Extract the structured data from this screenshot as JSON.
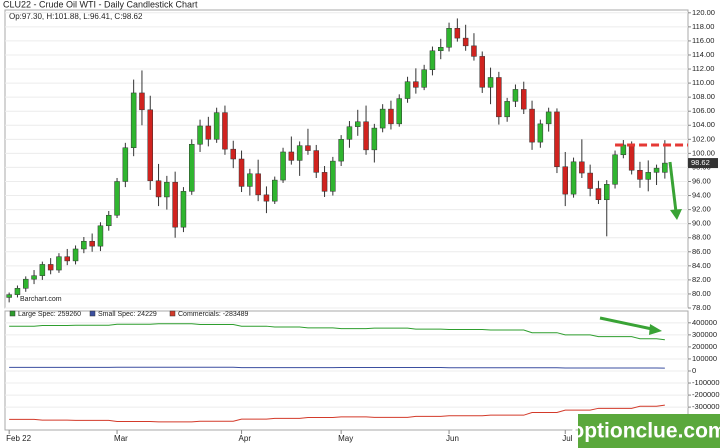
{
  "chart_data": [
    {
      "type": "candlestick",
      "title": "CLU22 - Crude Oil WTI - Daily Candlestick Chart",
      "info": "Op:97.30, H:101.88, L:96.41, C:98.62",
      "source": "Barchart.com",
      "up_color": "#2fb52f",
      "down_color": "#d0231f",
      "grid": true,
      "categories": [
        "Feb 22",
        null,
        null,
        null,
        null,
        null,
        null,
        null,
        null,
        null,
        null,
        null,
        null,
        "Mar",
        null,
        null,
        null,
        null,
        null,
        null,
        null,
        null,
        null,
        null,
        null,
        null,
        null,
        null,
        "Apr",
        null,
        null,
        null,
        null,
        null,
        null,
        null,
        null,
        null,
        null,
        null,
        "May",
        null,
        null,
        null,
        null,
        null,
        null,
        null,
        null,
        null,
        null,
        null,
        null,
        "Jun",
        null,
        null,
        null,
        null,
        null,
        null,
        null,
        null,
        null,
        null,
        null,
        null,
        null,
        "Jul",
        null,
        null,
        null,
        null,
        null,
        null,
        null,
        null,
        null,
        null,
        null,
        null
      ],
      "ohlc": [
        [
          79.5,
          80.2,
          78.8,
          79.9
        ],
        [
          79.9,
          81.2,
          79.5,
          80.8
        ],
        [
          80.8,
          82.5,
          80.3,
          82.1
        ],
        [
          82.1,
          83.4,
          81.4,
          82.6
        ],
        [
          82.6,
          84.6,
          82.0,
          84.2
        ],
        [
          84.2,
          85.1,
          82.8,
          83.4
        ],
        [
          83.4,
          85.8,
          83.0,
          85.3
        ],
        [
          85.3,
          86.4,
          84.1,
          84.7
        ],
        [
          84.7,
          86.9,
          84.2,
          86.4
        ],
        [
          86.4,
          88.1,
          85.8,
          87.5
        ],
        [
          87.5,
          88.6,
          86.0,
          86.8
        ],
        [
          86.8,
          90.2,
          86.1,
          89.7
        ],
        [
          89.7,
          91.8,
          89.0,
          91.2
        ],
        [
          91.2,
          96.5,
          90.8,
          96.0
        ],
        [
          96.0,
          101.5,
          95.2,
          100.8
        ],
        [
          100.8,
          110.5,
          99.6,
          108.6
        ],
        [
          108.6,
          111.8,
          104.0,
          106.2
        ],
        [
          106.2,
          108.2,
          94.8,
          96.1
        ],
        [
          96.1,
          98.5,
          92.5,
          93.8
        ],
        [
          93.8,
          96.8,
          92.0,
          95.9
        ],
        [
          95.9,
          97.4,
          88.0,
          89.5
        ],
        [
          89.5,
          95.2,
          88.8,
          94.6
        ],
        [
          94.6,
          102.0,
          94.1,
          101.3
        ],
        [
          101.3,
          104.8,
          100.2,
          103.9
        ],
        [
          103.9,
          105.2,
          101.0,
          102.0
        ],
        [
          102.0,
          106.5,
          101.5,
          105.8
        ],
        [
          105.8,
          106.8,
          99.8,
          100.6
        ],
        [
          100.6,
          101.8,
          97.9,
          99.2
        ],
        [
          99.2,
          100.4,
          94.5,
          95.3
        ],
        [
          95.3,
          97.8,
          94.0,
          97.1
        ],
        [
          97.1,
          99.1,
          93.2,
          94.1
        ],
        [
          94.1,
          95.3,
          91.5,
          93.2
        ],
        [
          93.2,
          96.7,
          92.8,
          96.2
        ],
        [
          96.2,
          100.8,
          95.8,
          100.2
        ],
        [
          100.2,
          102.4,
          98.4,
          99.0
        ],
        [
          99.0,
          101.7,
          96.8,
          101.1
        ],
        [
          101.1,
          103.5,
          99.8,
          100.4
        ],
        [
          100.4,
          101.2,
          96.5,
          97.3
        ],
        [
          97.3,
          98.2,
          93.8,
          94.6
        ],
        [
          94.6,
          99.5,
          94.0,
          98.9
        ],
        [
          98.9,
          102.6,
          98.2,
          102.0
        ],
        [
          102.0,
          104.6,
          100.8,
          103.8
        ],
        [
          103.8,
          106.2,
          102.5,
          104.5
        ],
        [
          104.5,
          106.8,
          99.8,
          100.5
        ],
        [
          100.5,
          104.2,
          98.7,
          103.6
        ],
        [
          103.6,
          107.0,
          103.0,
          106.3
        ],
        [
          106.3,
          107.5,
          103.4,
          104.2
        ],
        [
          104.2,
          108.4,
          103.8,
          107.8
        ],
        [
          107.8,
          110.9,
          107.2,
          110.2
        ],
        [
          110.2,
          112.1,
          108.5,
          109.4
        ],
        [
          109.4,
          112.6,
          109.0,
          111.9
        ],
        [
          111.9,
          115.2,
          111.1,
          114.6
        ],
        [
          114.6,
          116.3,
          113.4,
          115.1
        ],
        [
          115.1,
          118.6,
          114.5,
          117.8
        ],
        [
          117.8,
          119.2,
          115.9,
          116.4
        ],
        [
          116.4,
          118.3,
          114.6,
          115.3
        ],
        [
          115.3,
          117.1,
          113.2,
          113.8
        ],
        [
          113.8,
          114.5,
          108.6,
          109.4
        ],
        [
          109.4,
          112.2,
          107.0,
          110.8
        ],
        [
          110.8,
          111.6,
          104.1,
          105.2
        ],
        [
          105.2,
          107.9,
          104.5,
          107.4
        ],
        [
          107.4,
          109.8,
          106.6,
          109.1
        ],
        [
          109.1,
          110.2,
          105.6,
          106.3
        ],
        [
          106.3,
          107.5,
          100.5,
          101.6
        ],
        [
          101.6,
          104.8,
          100.8,
          104.2
        ],
        [
          104.2,
          106.5,
          103.1,
          105.9
        ],
        [
          105.9,
          106.4,
          97.2,
          98.1
        ],
        [
          98.1,
          100.2,
          92.5,
          94.2
        ],
        [
          94.2,
          99.4,
          93.7,
          98.8
        ],
        [
          98.8,
          102.0,
          96.5,
          97.2
        ],
        [
          97.2,
          98.4,
          93.9,
          95.0
        ],
        [
          95.0,
          96.1,
          92.8,
          93.4
        ],
        [
          93.4,
          96.2,
          88.2,
          95.6
        ],
        [
          95.6,
          100.4,
          95.0,
          99.8
        ],
        [
          99.8,
          101.9,
          99.3,
          101.2
        ],
        [
          101.2,
          101.7,
          97.0,
          97.6
        ],
        [
          97.6,
          98.8,
          95.1,
          96.3
        ],
        [
          96.3,
          99.0,
          94.6,
          97.3
        ],
        [
          97.3,
          98.4,
          95.5,
          97.9
        ],
        [
          97.3,
          101.88,
          96.41,
          98.62
        ]
      ],
      "hline": {
        "value": 101.2,
        "color": "#e53935"
      },
      "ylim": [
        78,
        120.4
      ],
      "yticks": [
        {
          "value": 78,
          "label": "78.00"
        },
        {
          "value": 80,
          "label": "80.00"
        },
        {
          "value": 82,
          "label": "82.00"
        },
        {
          "value": 84,
          "label": "84.00"
        },
        {
          "value": 86,
          "label": "86.00"
        },
        {
          "value": 88,
          "label": "88.00"
        },
        {
          "value": 90,
          "label": "90.00"
        },
        {
          "value": 92,
          "label": "92.00"
        },
        {
          "value": 94,
          "label": "94.00"
        },
        {
          "value": 96,
          "label": "96.00"
        },
        {
          "value": 98,
          "label": "98.00"
        },
        {
          "value": 100,
          "label": "100.00"
        },
        {
          "value": 102,
          "label": "102.00"
        },
        {
          "value": 104,
          "label": "104.00"
        },
        {
          "value": 106,
          "label": "106.00"
        },
        {
          "value": 108,
          "label": "108.00"
        },
        {
          "value": 110,
          "label": "110.00"
        },
        {
          "value": 112,
          "label": "112.00"
        },
        {
          "value": 114,
          "label": "114.00"
        },
        {
          "value": 116,
          "label": "116.00"
        },
        {
          "value": 118,
          "label": "118.00"
        },
        {
          "value": 120,
          "label": "120.00"
        }
      ]
    },
    {
      "type": "line",
      "grid": true,
      "series": [
        {
          "name": "Large Spec: 259260",
          "color": "#2e9e2e",
          "values": [
            372000,
            372000,
            372000,
            372000,
            378000,
            378000,
            378000,
            378000,
            380000,
            380000,
            380000,
            380000,
            380000,
            388000,
            388000,
            388000,
            388000,
            388000,
            392000,
            392000,
            392000,
            392000,
            392000,
            386000,
            386000,
            386000,
            386000,
            386000,
            372000,
            372000,
            372000,
            372000,
            365000,
            365000,
            365000,
            365000,
            358000,
            358000,
            358000,
            358000,
            352000,
            352000,
            352000,
            352000,
            356000,
            356000,
            356000,
            356000,
            356000,
            348000,
            348000,
            348000,
            348000,
            345000,
            345000,
            345000,
            345000,
            345000,
            340000,
            340000,
            340000,
            340000,
            340000,
            318000,
            318000,
            318000,
            318000,
            300000,
            300000,
            300000,
            300000,
            285000,
            285000,
            285000,
            285000,
            285000,
            268000,
            268000,
            268000,
            259260
          ]
        },
        {
          "name": "Small Spec: 24229",
          "color": "#3b4fa0",
          "values": [
            30000,
            30000,
            30000,
            30000,
            30000,
            30000,
            30000,
            30000,
            30000,
            30000,
            30000,
            30000,
            30000,
            31000,
            31000,
            31000,
            31000,
            31000,
            31000,
            31000,
            31000,
            31000,
            31000,
            31000,
            31000,
            31000,
            31000,
            31000,
            28000,
            28000,
            28000,
            28000,
            28000,
            28000,
            28000,
            28000,
            28000,
            28000,
            28000,
            28000,
            29000,
            29000,
            29000,
            29000,
            29000,
            29000,
            29000,
            29000,
            29000,
            29000,
            29000,
            29000,
            29000,
            27000,
            27000,
            27000,
            27000,
            27000,
            27000,
            27000,
            27000,
            27000,
            27000,
            27000,
            27000,
            27000,
            27000,
            25000,
            25000,
            25000,
            25000,
            25000,
            25000,
            25000,
            25000,
            25000,
            25000,
            25000,
            25000,
            24229
          ]
        },
        {
          "name": "Commercials: -283489",
          "color": "#d33a2a",
          "values": [
            -402000,
            -402000,
            -402000,
            -402000,
            -408000,
            -408000,
            -408000,
            -408000,
            -410000,
            -410000,
            -410000,
            -410000,
            -410000,
            -419000,
            -419000,
            -419000,
            -419000,
            -419000,
            -423000,
            -423000,
            -423000,
            -423000,
            -423000,
            -417000,
            -417000,
            -417000,
            -417000,
            -417000,
            -400000,
            -400000,
            -400000,
            -400000,
            -393000,
            -393000,
            -393000,
            -393000,
            -386000,
            -386000,
            -386000,
            -386000,
            -381000,
            -381000,
            -381000,
            -381000,
            -385000,
            -385000,
            -385000,
            -385000,
            -385000,
            -377000,
            -377000,
            -377000,
            -377000,
            -372000,
            -372000,
            -372000,
            -372000,
            -372000,
            -367000,
            -367000,
            -367000,
            -367000,
            -367000,
            -345000,
            -345000,
            -345000,
            -345000,
            -325000,
            -325000,
            -325000,
            -325000,
            -310000,
            -310000,
            -310000,
            -310000,
            -310000,
            -293000,
            -293000,
            -293000,
            -283489
          ]
        }
      ],
      "ylim": [
        -490000,
        440000
      ],
      "yticks": [
        400000,
        300000,
        200000,
        100000,
        0,
        -100000,
        -200000,
        -300000
      ]
    }
  ],
  "watermark": "optionclue.com"
}
